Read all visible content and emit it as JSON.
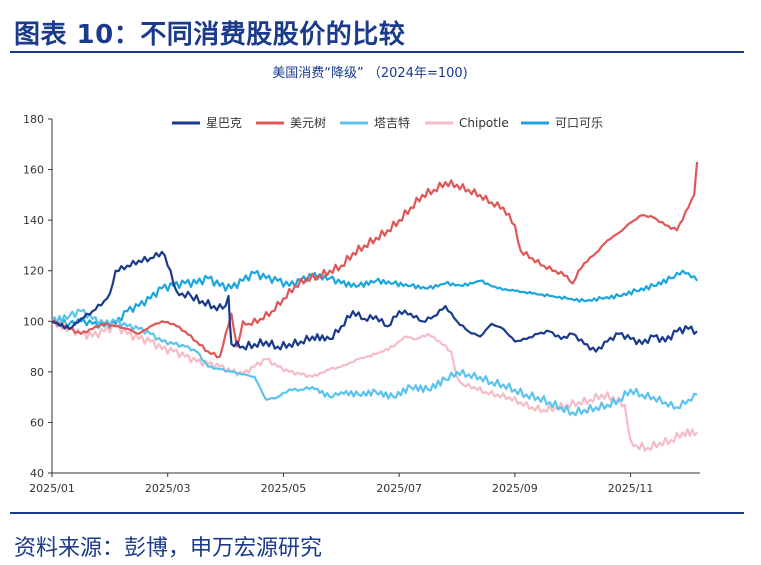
{
  "figure": {
    "title": "图表 10：不同消费股股价的比较",
    "source": "资料来源：彭博，申万宏源研究"
  },
  "chart_data": {
    "type": "line",
    "title": "美国消费“降级” （2024年=100)",
    "xlabel": "",
    "ylabel": "",
    "ylim": [
      40,
      180
    ],
    "yticks": [
      40,
      60,
      80,
      100,
      120,
      140,
      160,
      180
    ],
    "xlim": [
      0,
      11.2
    ],
    "x_note": "x measured in months since 2025/01",
    "xticks": [
      {
        "x": 0,
        "label": "2025/01"
      },
      {
        "x": 2,
        "label": "2025/03"
      },
      {
        "x": 4,
        "label": "2025/05"
      },
      {
        "x": 6,
        "label": "2025/07"
      },
      {
        "x": 8,
        "label": "2025/09"
      },
      {
        "x": 10,
        "label": "2025/11"
      }
    ],
    "legend_position": "top",
    "series": [
      {
        "name": "星巴克",
        "color": "#1a3a8c",
        "x": [
          0,
          0.3,
          0.5,
          0.7,
          0.9,
          1.0,
          1.1,
          1.3,
          1.5,
          1.7,
          1.8,
          1.95,
          2.05,
          2.15,
          2.25,
          2.4,
          2.6,
          2.8,
          2.95,
          3.05,
          3.1,
          3.2,
          3.3,
          3.5,
          3.7,
          3.9,
          4.1,
          4.3,
          4.5,
          4.8,
          5.0,
          5.2,
          5.4,
          5.6,
          5.8,
          6.0,
          6.2,
          6.4,
          6.6,
          6.8,
          7.0,
          7.2,
          7.4,
          7.6,
          7.8,
          8.0,
          8.2,
          8.4,
          8.6,
          8.8,
          9.0,
          9.2,
          9.4,
          9.6,
          9.8,
          10.0,
          10.2,
          10.4,
          10.6,
          10.8,
          11.0,
          11.15
        ],
        "y": [
          100,
          97,
          101,
          104,
          108,
          111,
          120,
          122,
          124,
          125,
          127,
          126,
          120,
          112,
          111,
          110,
          108,
          106,
          105,
          110,
          91,
          92,
          90,
          91,
          92,
          90,
          91,
          92,
          94,
          93,
          98,
          104,
          101,
          102,
          98,
          104,
          103,
          100,
          102,
          106,
          100,
          96,
          94,
          99,
          97,
          92,
          93,
          95,
          96,
          93,
          95,
          91,
          88,
          92,
          95,
          93,
          91,
          94,
          92,
          96,
          97,
          96
        ]
      },
      {
        "name": "美元树",
        "color": "#e05757",
        "x": [
          0,
          0.3,
          0.5,
          0.7,
          0.9,
          1.1,
          1.3,
          1.5,
          1.7,
          1.9,
          2.1,
          2.3,
          2.5,
          2.7,
          2.9,
          3.0,
          3.1,
          3.2,
          3.3,
          3.4,
          3.6,
          3.8,
          4.0,
          4.2,
          4.4,
          4.6,
          4.8,
          5.0,
          5.2,
          5.4,
          5.6,
          5.8,
          6.0,
          6.2,
          6.4,
          6.6,
          6.8,
          7.0,
          7.2,
          7.4,
          7.6,
          7.8,
          8.0,
          8.1,
          8.3,
          8.5,
          8.7,
          8.9,
          9.0,
          9.1,
          9.2,
          9.4,
          9.6,
          9.8,
          10.0,
          10.2,
          10.4,
          10.6,
          10.8,
          11.0,
          11.1,
          11.15
        ],
        "y": [
          100,
          97,
          95,
          97,
          99,
          98,
          97,
          95,
          98,
          100,
          99,
          96,
          92,
          88,
          86,
          95,
          103,
          90,
          100,
          99,
          101,
          104,
          109,
          114,
          117,
          118,
          120,
          122,
          127,
          130,
          133,
          136,
          140,
          145,
          150,
          152,
          155,
          154,
          152,
          150,
          147,
          145,
          138,
          128,
          125,
          122,
          120,
          118,
          115,
          120,
          123,
          127,
          132,
          135,
          139,
          142,
          141,
          138,
          136,
          145,
          150,
          163
        ]
      },
      {
        "name": "塔吉特",
        "color": "#5bc4ee",
        "x": [
          0,
          0.3,
          0.5,
          0.7,
          0.9,
          1.1,
          1.3,
          1.5,
          1.7,
          1.9,
          2.1,
          2.3,
          2.5,
          2.7,
          2.9,
          3.1,
          3.3,
          3.5,
          3.7,
          3.9,
          4.1,
          4.3,
          4.5,
          4.8,
          5.0,
          5.3,
          5.6,
          5.9,
          6.2,
          6.5,
          6.8,
          7.0,
          7.2,
          7.4,
          7.6,
          7.8,
          8.0,
          8.2,
          8.4,
          8.6,
          8.8,
          9.0,
          9.2,
          9.4,
          9.6,
          9.8,
          10.0,
          10.2,
          10.4,
          10.6,
          10.8,
          11.0,
          11.15
        ],
        "y": [
          100,
          102,
          104,
          101,
          99,
          100,
          98,
          97,
          95,
          92,
          91,
          90,
          88,
          82,
          81,
          80,
          79,
          78,
          69,
          70,
          73,
          73,
          74,
          70,
          72,
          71,
          72,
          70,
          74,
          73,
          77,
          80,
          79,
          78,
          76,
          75,
          73,
          71,
          70,
          68,
          66,
          64,
          65,
          66,
          67,
          69,
          73,
          71,
          70,
          68,
          66,
          69,
          71
        ]
      },
      {
        "name": "Chipotle",
        "color": "#f5bcc6",
        "x": [
          0,
          0.3,
          0.5,
          0.7,
          0.9,
          1.1,
          1.3,
          1.5,
          1.7,
          1.9,
          2.1,
          2.3,
          2.5,
          2.7,
          2.9,
          3.1,
          3.3,
          3.5,
          3.7,
          3.9,
          4.1,
          4.3,
          4.5,
          4.8,
          5.0,
          5.3,
          5.6,
          5.9,
          6.1,
          6.3,
          6.5,
          6.7,
          6.9,
          7.0,
          7.1,
          7.3,
          7.5,
          7.7,
          7.9,
          8.1,
          8.3,
          8.5,
          8.7,
          8.9,
          9.1,
          9.3,
          9.5,
          9.7,
          9.9,
          10.0,
          10.1,
          10.3,
          10.5,
          10.7,
          10.9,
          11.15
        ],
        "y": [
          100,
          97,
          95,
          94,
          96,
          98,
          95,
          93,
          92,
          89,
          88,
          86,
          84,
          83,
          82,
          80,
          79,
          82,
          85,
          82,
          80,
          79,
          78,
          81,
          82,
          85,
          87,
          90,
          94,
          93,
          95,
          92,
          88,
          78,
          75,
          74,
          72,
          71,
          70,
          68,
          66,
          65,
          66,
          67,
          68,
          69,
          71,
          70,
          67,
          53,
          51,
          50,
          52,
          53,
          56,
          56
        ]
      },
      {
        "name": "可口可乐",
        "color": "#1ba6dd",
        "x": [
          0,
          0.3,
          0.5,
          0.7,
          0.9,
          1.1,
          1.3,
          1.5,
          1.7,
          1.9,
          2.1,
          2.3,
          2.5,
          2.7,
          2.9,
          3.1,
          3.3,
          3.5,
          3.7,
          3.9,
          4.1,
          4.3,
          4.5,
          4.8,
          5.0,
          5.3,
          5.6,
          5.9,
          6.2,
          6.5,
          6.8,
          7.1,
          7.4,
          7.7,
          8.0,
          8.3,
          8.6,
          8.9,
          9.2,
          9.5,
          9.8,
          10.1,
          10.4,
          10.7,
          10.9,
          11.0,
          11.15
        ],
        "y": [
          100,
          99,
          100,
          99,
          98,
          99,
          104,
          106,
          109,
          113,
          114,
          115,
          115,
          117,
          114,
          113,
          116,
          119,
          117,
          116,
          114,
          116,
          118,
          117,
          115,
          114,
          116,
          115,
          114,
          113,
          115,
          114,
          116,
          113,
          112,
          111,
          110,
          109,
          108,
          109,
          110,
          112,
          114,
          117,
          120,
          119,
          116
        ]
      }
    ]
  }
}
